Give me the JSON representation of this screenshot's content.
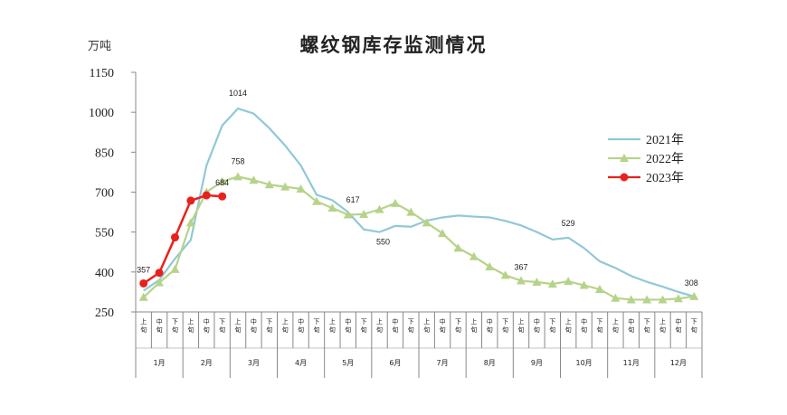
{
  "chart_data": {
    "type": "line",
    "title": "螺纹钢库存监测情况",
    "y_unit": "万吨",
    "ylim": [
      250,
      1150
    ],
    "yticks": [
      250,
      400,
      550,
      700,
      850,
      1000,
      1150
    ],
    "months": [
      "1月",
      "2月",
      "3月",
      "4月",
      "5月",
      "6月",
      "7月",
      "8月",
      "9月",
      "10月",
      "11月",
      "12月"
    ],
    "periods": [
      "上旬",
      "中旬",
      "下旬"
    ],
    "grid": false,
    "legend_position": "right",
    "series": [
      {
        "name": "2021年",
        "color": "#92c8d6",
        "marker": "none",
        "values": [
          330,
          370,
          450,
          520,
          800,
          950,
          1014,
          995,
          940,
          875,
          800,
          690,
          670,
          625,
          560,
          550,
          573,
          570,
          593,
          605,
          612,
          608,
          605,
          592,
          575,
          550,
          522,
          529,
          490,
          440,
          415,
          385,
          363,
          345,
          325,
          308
        ]
      },
      {
        "name": "2022年",
        "color": "#b6d38a",
        "marker": "triangle",
        "values": [
          305,
          360,
          410,
          585,
          700,
          740,
          758,
          745,
          728,
          720,
          712,
          665,
          640,
          615,
          617,
          635,
          658,
          625,
          585,
          545,
          490,
          458,
          420,
          388,
          367,
          362,
          355,
          365,
          350,
          335,
          302,
          296,
          296,
          296,
          300,
          308
        ]
      },
      {
        "name": "2023年",
        "color": "#e8211d",
        "marker": "circle",
        "values": [
          357,
          397,
          530,
          668,
          688,
          684
        ]
      }
    ],
    "annotations": [
      {
        "text": "357",
        "series": "2023年",
        "index": 0
      },
      {
        "text": "684",
        "series": "2023年",
        "index": 5
      },
      {
        "text": "1014",
        "series": "2021年",
        "index": 6
      },
      {
        "text": "758",
        "series": "2022年",
        "index": 6
      },
      {
        "text": "617",
        "series": "2022年",
        "index": 14
      },
      {
        "text": "550",
        "series": "2021年",
        "index": 15
      },
      {
        "text": "367",
        "series": "2022年",
        "index": 24
      },
      {
        "text": "529",
        "series": "2021年",
        "index": 27
      },
      {
        "text": "308",
        "series": "2022年",
        "index": 35
      }
    ]
  }
}
